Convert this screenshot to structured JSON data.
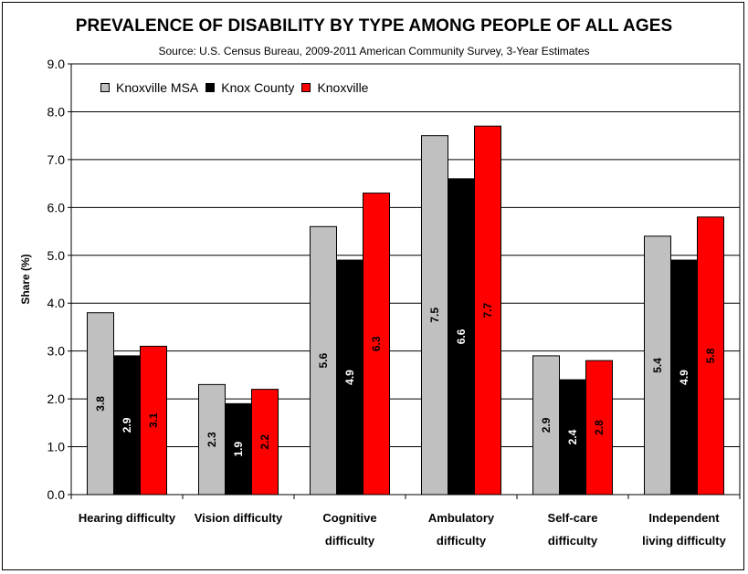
{
  "chart_data": {
    "type": "bar",
    "title": "PREVALENCE OF DISABILITY BY TYPE AMONG PEOPLE OF ALL AGES",
    "subtitle": "Source: U.S. Census Bureau, 2009-2011 American Community Survey, 3-Year Estimates",
    "ylabel": "Share (%)",
    "xlabel": "",
    "ylim": [
      0,
      9
    ],
    "ytick_step": 1,
    "ytick_labels": [
      "0.0",
      "1.0",
      "2.0",
      "3.0",
      "4.0",
      "5.0",
      "6.0",
      "7.0",
      "8.0",
      "9.0"
    ],
    "categories": [
      [
        "Hearing difficulty"
      ],
      [
        "Vision difficulty"
      ],
      [
        "Cognitive",
        "difficulty"
      ],
      [
        "Ambulatory",
        "difficulty"
      ],
      [
        "Self-care",
        "difficulty"
      ],
      [
        "Independent",
        "living difficulty"
      ]
    ],
    "series": [
      {
        "name": "Knoxville MSA",
        "color": "#c0c0c0",
        "label_color": "#000000",
        "values": [
          3.8,
          2.3,
          5.6,
          7.5,
          2.9,
          5.4
        ]
      },
      {
        "name": "Knox County",
        "color": "#000000",
        "label_color": "#ffffff",
        "values": [
          2.9,
          1.9,
          4.9,
          6.6,
          2.4,
          4.9
        ]
      },
      {
        "name": "Knoxville",
        "color": "#ff0000",
        "label_color": "#000000",
        "values": [
          3.1,
          2.2,
          6.3,
          7.7,
          2.8,
          5.8
        ]
      }
    ],
    "data_labels": [
      [
        "3.8",
        "2.3",
        "5.6",
        "7.5",
        "2.9",
        "5.4"
      ],
      [
        "2.9",
        "1.9",
        "4.9",
        "6.6",
        "2.4",
        "4.9"
      ],
      [
        "3.1",
        "2.2",
        "6.3",
        "7.7",
        "2.8",
        "5.8"
      ]
    ],
    "legend_position": "top-left",
    "grid": true
  }
}
